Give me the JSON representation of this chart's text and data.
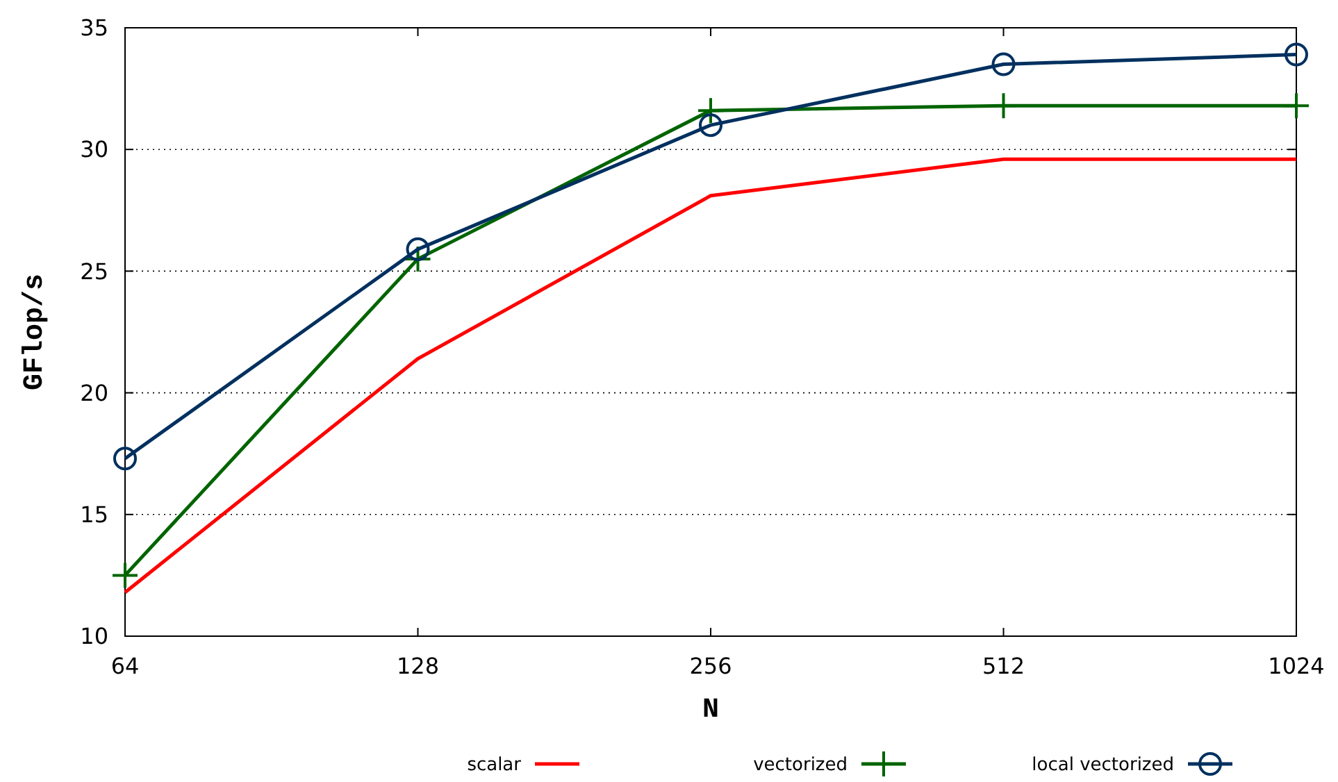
{
  "chart_data": {
    "type": "line",
    "xlabel": "N",
    "ylabel": "GFlop/s",
    "log": "x",
    "x": [
      64,
      128,
      256,
      512,
      1024
    ],
    "xlim": [
      64,
      1024
    ],
    "xticks": [
      64,
      128,
      256,
      512,
      1024
    ],
    "ylim": [
      10,
      35
    ],
    "yticks": [
      10,
      15,
      20,
      25,
      30,
      35
    ],
    "grid": "y",
    "legend": "bottom",
    "series": [
      {
        "name": "scalar",
        "color": "#ff0000",
        "marker": "none",
        "values": [
          11.8,
          21.4,
          28.1,
          29.6,
          29.6
        ]
      },
      {
        "name": "vectorized",
        "color": "#006400",
        "marker": "cross",
        "values": [
          12.5,
          25.5,
          31.6,
          31.8,
          31.8
        ]
      },
      {
        "name": "local vectorized",
        "color": "#00305f",
        "marker": "circle",
        "values": [
          17.3,
          25.9,
          31.0,
          33.5,
          33.9
        ]
      }
    ]
  }
}
